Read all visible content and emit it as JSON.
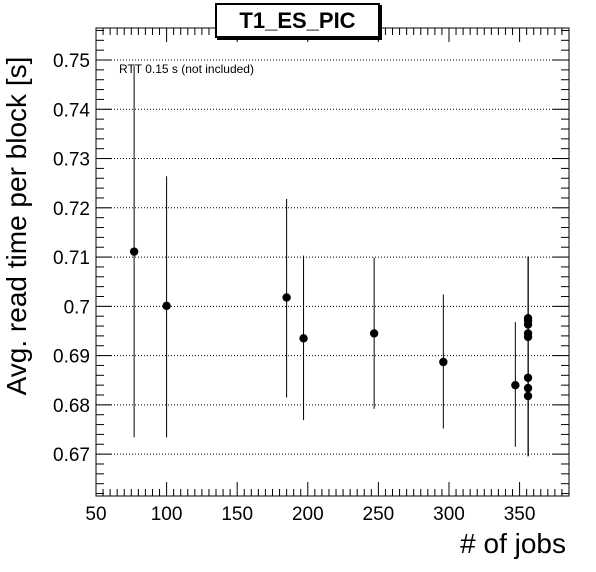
{
  "chart_data": {
    "type": "scatter",
    "title": "T1_ES_PIC",
    "xlabel": "# of jobs",
    "ylabel": "Avg. read time per block [s]",
    "annotation": "RTT 0.15 s (not included)",
    "xlim": [
      50,
      385
    ],
    "ylim": [
      0.6615,
      0.7565
    ],
    "xticks": [
      50,
      100,
      150,
      200,
      250,
      300,
      350
    ],
    "xtick_labels": [
      "50",
      "100",
      "150",
      "200",
      "250",
      "300",
      "350"
    ],
    "yticks": [
      0.67,
      0.68,
      0.69,
      0.7,
      0.71,
      0.72,
      0.73,
      0.74,
      0.75
    ],
    "ytick_labels": [
      "0.67",
      "0.68",
      "0.69",
      "0.7",
      "0.71",
      "0.72",
      "0.73",
      "0.74",
      "0.75"
    ],
    "grid": "horizontal-dotted",
    "points": [
      {
        "x": 77,
        "y": 0.7111,
        "ylow": 0.6734,
        "yhigh": 0.7488
      },
      {
        "x": 100,
        "y": 0.7001,
        "ylow": 0.6734,
        "yhigh": 0.7264
      },
      {
        "x": 185,
        "y": 0.7018,
        "ylow": 0.6815,
        "yhigh": 0.7218
      },
      {
        "x": 197,
        "y": 0.6935,
        "ylow": 0.6769,
        "yhigh": 0.7103
      },
      {
        "x": 247,
        "y": 0.6945,
        "ylow": 0.6792,
        "yhigh": 0.7099
      },
      {
        "x": 296,
        "y": 0.6887,
        "ylow": 0.6752,
        "yhigh": 0.7024
      },
      {
        "x": 347,
        "y": 0.684,
        "ylow": 0.6715,
        "yhigh": 0.6968
      },
      {
        "x": 356,
        "y": 0.6976,
        "ylow": 0.6696,
        "yhigh": 0.7101
      },
      {
        "x": 356,
        "y": 0.6971,
        "ylow": 0.6696,
        "yhigh": 0.7101
      },
      {
        "x": 356,
        "y": 0.6963,
        "ylow": 0.6696,
        "yhigh": 0.7101
      },
      {
        "x": 356,
        "y": 0.6945,
        "ylow": 0.6696,
        "yhigh": 0.7101
      },
      {
        "x": 356,
        "y": 0.6938,
        "ylow": 0.6696,
        "yhigh": 0.7101
      },
      {
        "x": 356,
        "y": 0.6855,
        "ylow": 0.6696,
        "yhigh": 0.7101
      },
      {
        "x": 356,
        "y": 0.6834,
        "ylow": 0.6696,
        "yhigh": 0.7101
      },
      {
        "x": 356,
        "y": 0.6818,
        "ylow": 0.6696,
        "yhigh": 0.7101
      }
    ],
    "colors": {
      "marker": "#000000",
      "axis": "#000000",
      "grid": "#000000",
      "background": "#ffffff"
    }
  }
}
